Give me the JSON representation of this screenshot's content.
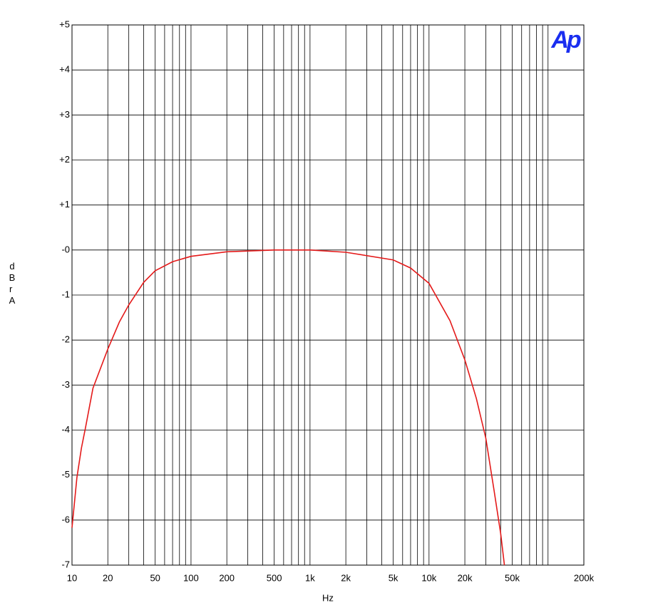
{
  "chart_data": {
    "type": "line",
    "logo": "Ap",
    "xlabel": "Hz",
    "ylabel": "dBr A",
    "x": [
      10,
      11,
      12,
      13,
      15,
      20,
      25,
      30,
      40,
      50,
      70,
      100,
      200,
      500,
      1000,
      2000,
      5000,
      7000,
      10000,
      15000,
      20000,
      25000,
      30000,
      35000,
      40000,
      43000
    ],
    "values": [
      -6.17,
      -5.05,
      -4.4,
      -3.94,
      -3.07,
      -2.2,
      -1.6,
      -1.22,
      -0.72,
      -0.46,
      -0.26,
      -0.14,
      -0.04,
      0,
      0,
      -0.05,
      -0.22,
      -0.4,
      -0.74,
      -1.57,
      -2.44,
      -3.3,
      -4.18,
      -5.3,
      -6.3,
      -7
    ],
    "color": "#e41a1a",
    "xscale": "log",
    "xlim": [
      10,
      200000
    ],
    "ylim": [
      -7,
      5
    ],
    "xticks": [
      10,
      20,
      50,
      100,
      200,
      500,
      {
        "value": 1000,
        "label": "1k"
      },
      {
        "value": 2000,
        "label": "2k"
      },
      {
        "value": 5000,
        "label": "5k"
      },
      {
        "value": 10000,
        "label": "10k"
      },
      {
        "value": 20000,
        "label": "20k"
      },
      {
        "value": 50000,
        "label": "50k"
      },
      {
        "value": 200000,
        "label": "200k"
      }
    ],
    "xgrid": [
      10,
      20,
      30,
      40,
      50,
      60,
      70,
      80,
      90,
      100,
      200,
      300,
      400,
      500,
      600,
      700,
      800,
      900,
      1000,
      2000,
      3000,
      4000,
      5000,
      6000,
      7000,
      8000,
      9000,
      10000,
      20000,
      30000,
      40000,
      50000,
      60000,
      70000,
      80000,
      90000,
      100000,
      200000
    ],
    "yticks": [
      {
        "value": 5,
        "label": "+5"
      },
      {
        "value": 4,
        "label": "+4"
      },
      {
        "value": 3,
        "label": "+3"
      },
      {
        "value": 2,
        "label": "+2"
      },
      {
        "value": 1,
        "label": "+1"
      },
      {
        "value": 0,
        "label": "-0"
      },
      -1,
      -2,
      -3,
      -4,
      -5,
      -6,
      -7
    ],
    "grid": true
  }
}
